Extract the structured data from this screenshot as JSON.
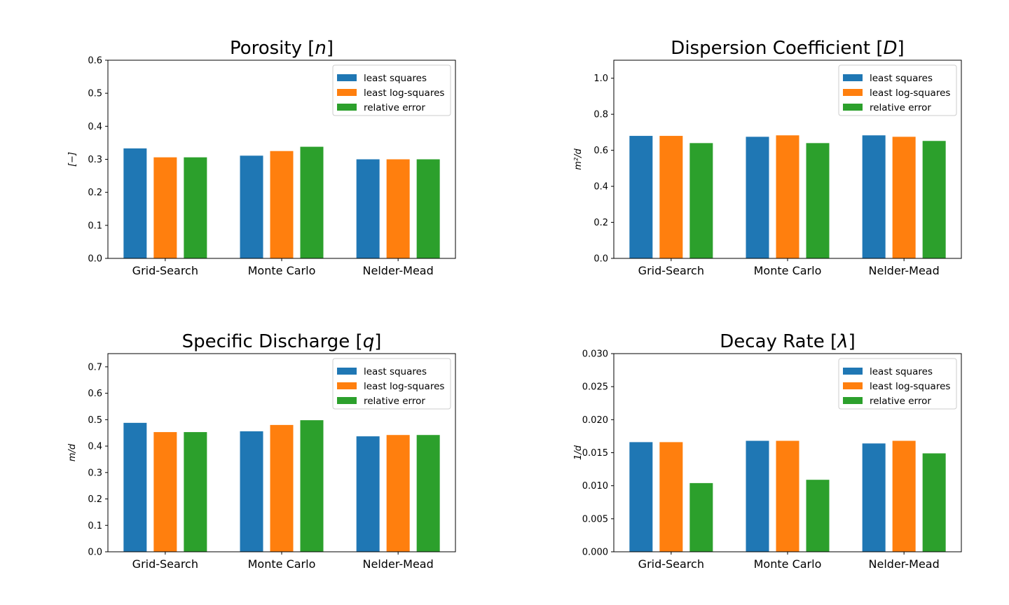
{
  "colors": {
    "least_squares": "#1f77b4",
    "least_log_squares": "#ff7f0e",
    "relative_error": "#2ca02c"
  },
  "chart_data": [
    {
      "type": "bar",
      "title": "Porosity [n]",
      "title_main": "Porosity [",
      "title_symbol": "n",
      "title_end": "]",
      "ylabel": "[−]",
      "ylim": [
        0,
        0.6
      ],
      "yticks": [
        "0.0",
        "0.1",
        "0.2",
        "0.3",
        "0.4",
        "0.5",
        "0.6"
      ],
      "ytick_values": [
        0,
        0.1,
        0.2,
        0.3,
        0.4,
        0.5,
        0.6
      ],
      "legend": "top-right",
      "grid": false,
      "categories": [
        "Grid-Search",
        "Monte Carlo",
        "Nelder-Mead"
      ],
      "series": [
        {
          "name": "least squares",
          "color_key": "least_squares",
          "values": [
            0.333,
            0.311,
            0.3
          ]
        },
        {
          "name": "least log-squares",
          "color_key": "least_log_squares",
          "values": [
            0.306,
            0.325,
            0.3
          ]
        },
        {
          "name": "relative error",
          "color_key": "relative_error",
          "values": [
            0.306,
            0.338,
            0.3
          ]
        }
      ]
    },
    {
      "type": "bar",
      "title": "Dispersion Coefficient [D]",
      "title_main": "Dispersion Coefficient [",
      "title_symbol": "D",
      "title_end": "]",
      "ylabel": "m²/d",
      "ylim": [
        0,
        1.1
      ],
      "yticks": [
        "0.0",
        "0.2",
        "0.4",
        "0.6",
        "0.8",
        "1.0"
      ],
      "ytick_values": [
        0,
        0.2,
        0.4,
        0.6,
        0.8,
        1.0
      ],
      "legend": "top-right",
      "grid": false,
      "categories": [
        "Grid-Search",
        "Monte Carlo",
        "Nelder-Mead"
      ],
      "series": [
        {
          "name": "least squares",
          "color_key": "least_squares",
          "values": [
            0.68,
            0.675,
            0.683
          ]
        },
        {
          "name": "least log-squares",
          "color_key": "least_log_squares",
          "values": [
            0.68,
            0.683,
            0.675
          ]
        },
        {
          "name": "relative error",
          "color_key": "relative_error",
          "values": [
            0.64,
            0.64,
            0.652
          ]
        }
      ]
    },
    {
      "type": "bar",
      "title": "Specific Discharge [q]",
      "title_main": "Specific Discharge [",
      "title_symbol": "q",
      "title_end": "]",
      "ylabel": "m/d",
      "ylim": [
        0,
        0.75
      ],
      "yticks": [
        "0.0",
        "0.1",
        "0.2",
        "0.3",
        "0.4",
        "0.5",
        "0.6",
        "0.7"
      ],
      "ytick_values": [
        0,
        0.1,
        0.2,
        0.3,
        0.4,
        0.5,
        0.6,
        0.7
      ],
      "legend": "top-right",
      "grid": false,
      "categories": [
        "Grid-Search",
        "Monte Carlo",
        "Nelder-Mead"
      ],
      "series": [
        {
          "name": "least squares",
          "color_key": "least_squares",
          "values": [
            0.488,
            0.456,
            0.437
          ]
        },
        {
          "name": "least log-squares",
          "color_key": "least_log_squares",
          "values": [
            0.453,
            0.48,
            0.442
          ]
        },
        {
          "name": "relative error",
          "color_key": "relative_error",
          "values": [
            0.453,
            0.498,
            0.442
          ]
        }
      ]
    },
    {
      "type": "bar",
      "title": "Decay Rate [λ]",
      "title_main": "Decay Rate [",
      "title_symbol": "λ",
      "title_end": "]",
      "ylabel": "1/d",
      "ylim": [
        0,
        0.03
      ],
      "yticks": [
        "0.000",
        "0.005",
        "0.010",
        "0.015",
        "0.020",
        "0.025",
        "0.030"
      ],
      "ytick_values": [
        0,
        0.005,
        0.01,
        0.015,
        0.02,
        0.025,
        0.03
      ],
      "legend": "top-right",
      "grid": false,
      "categories": [
        "Grid-Search",
        "Monte Carlo",
        "Nelder-Mead"
      ],
      "series": [
        {
          "name": "least squares",
          "color_key": "least_squares",
          "values": [
            0.0166,
            0.0168,
            0.0164
          ]
        },
        {
          "name": "least log-squares",
          "color_key": "least_log_squares",
          "values": [
            0.0166,
            0.0168,
            0.0168
          ]
        },
        {
          "name": "relative error",
          "color_key": "relative_error",
          "values": [
            0.0104,
            0.0109,
            0.0149
          ]
        }
      ]
    }
  ]
}
